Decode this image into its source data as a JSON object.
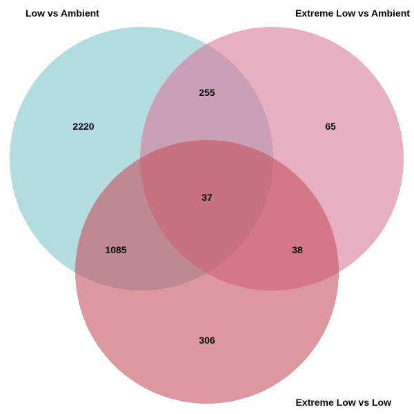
{
  "diagram": {
    "type": "venn3",
    "sets": [
      {
        "id": "A",
        "label": "Low vs Ambient",
        "color": "#7fc4cc"
      },
      {
        "id": "B",
        "label": "Extreme Low vs Ambient",
        "color": "#d9789a"
      },
      {
        "id": "C",
        "label": "Extreme Low vs Low",
        "color": "#c6525e"
      }
    ],
    "regions": [
      {
        "sets": [
          "A"
        ],
        "count": "2220"
      },
      {
        "sets": [
          "B"
        ],
        "count": "65"
      },
      {
        "sets": [
          "C"
        ],
        "count": "306"
      },
      {
        "sets": [
          "A",
          "B"
        ],
        "count": "255"
      },
      {
        "sets": [
          "A",
          "C"
        ],
        "count": "1085"
      },
      {
        "sets": [
          "B",
          "C"
        ],
        "count": "38"
      },
      {
        "sets": [
          "A",
          "B",
          "C"
        ],
        "count": "37"
      }
    ]
  }
}
